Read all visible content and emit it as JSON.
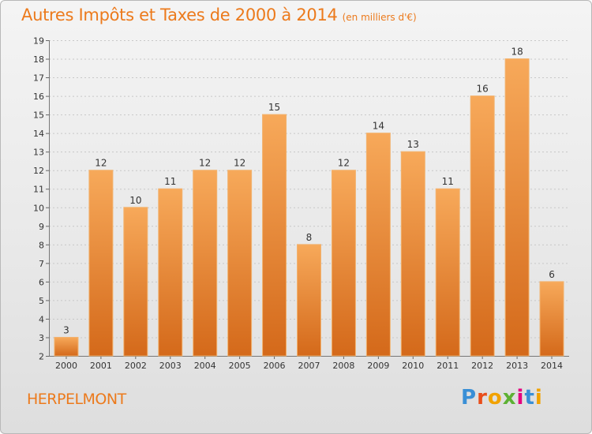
{
  "header": {
    "title": "Autres Impôts et Taxes de 2000 à 2014",
    "subtitle": "(en milliers d'€)"
  },
  "footer": {
    "commune": "HERPELMONT",
    "logo": [
      "P",
      "r",
      "o",
      "x",
      "i",
      "t",
      "i"
    ]
  },
  "colors": {
    "title": "#ec7a1c",
    "bar_top": "#f7a95a",
    "bar_bottom": "#d4691a",
    "grid": "#c8c8c8",
    "logo": [
      "#3a8fd6",
      "#e94e1b",
      "#f1a200",
      "#5db133",
      "#e4007e",
      "#3a8fd6",
      "#f1a200"
    ]
  },
  "chart_data": {
    "type": "bar",
    "categories": [
      "2000",
      "2001",
      "2002",
      "2003",
      "2004",
      "2005",
      "2006",
      "2007",
      "2008",
      "2009",
      "2010",
      "2011",
      "2012",
      "2013",
      "2014"
    ],
    "values": [
      3,
      12,
      10,
      11,
      12,
      12,
      15,
      8,
      12,
      14,
      13,
      11,
      16,
      18,
      6
    ],
    "title": "Autres Impôts et Taxes de 2000 à 2014",
    "ylabel": "",
    "xlabel": "",
    "ylim": [
      2,
      19
    ],
    "yticks": [
      "2",
      "3",
      "4",
      "5",
      "6",
      "7",
      "8",
      "9",
      "10",
      "11",
      "12",
      "13",
      "14",
      "15",
      "16",
      "17",
      "18",
      "19"
    ],
    "grid": true,
    "legend": "none"
  }
}
